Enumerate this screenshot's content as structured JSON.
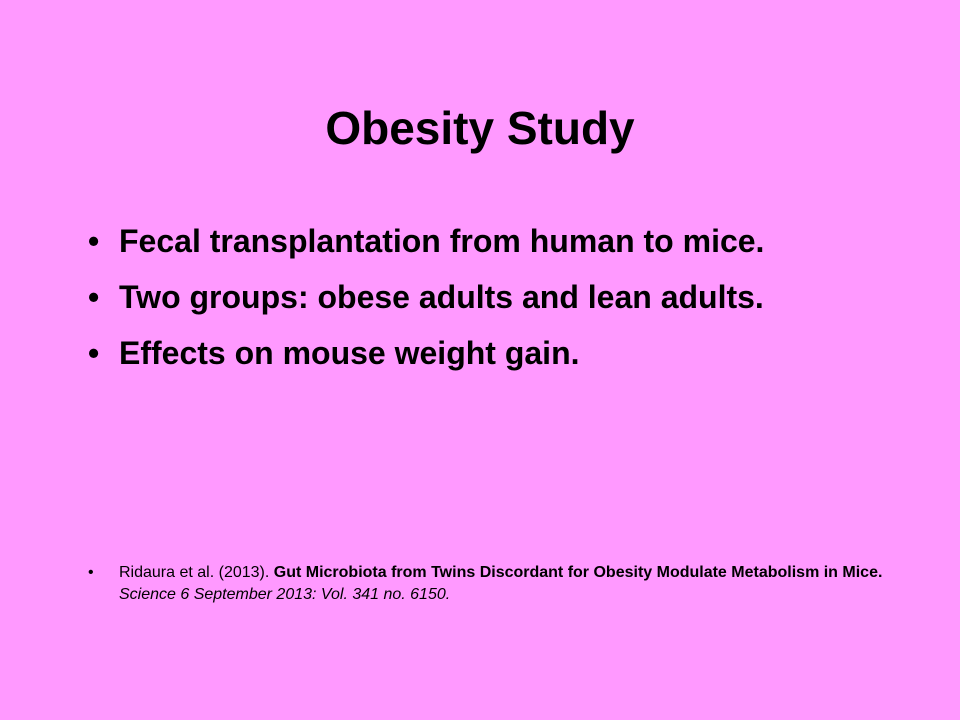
{
  "slide": {
    "title": "Obesity Study",
    "background_color": "#ff99ff",
    "bullet_symbol": "•",
    "bullets": [
      "Fecal transplantation from human to mice.",
      "Two groups: obese adults and lean adults.",
      "Effects on mouse weight gain."
    ],
    "reference": {
      "authors": "Ridaura et al. (2013).",
      "title": "Gut Microbiota from Twins Discordant for Obesity Modulate Metabolism in Mice.",
      "journal": "Science 6 September 2013: Vol. 341 no. 6150."
    }
  }
}
